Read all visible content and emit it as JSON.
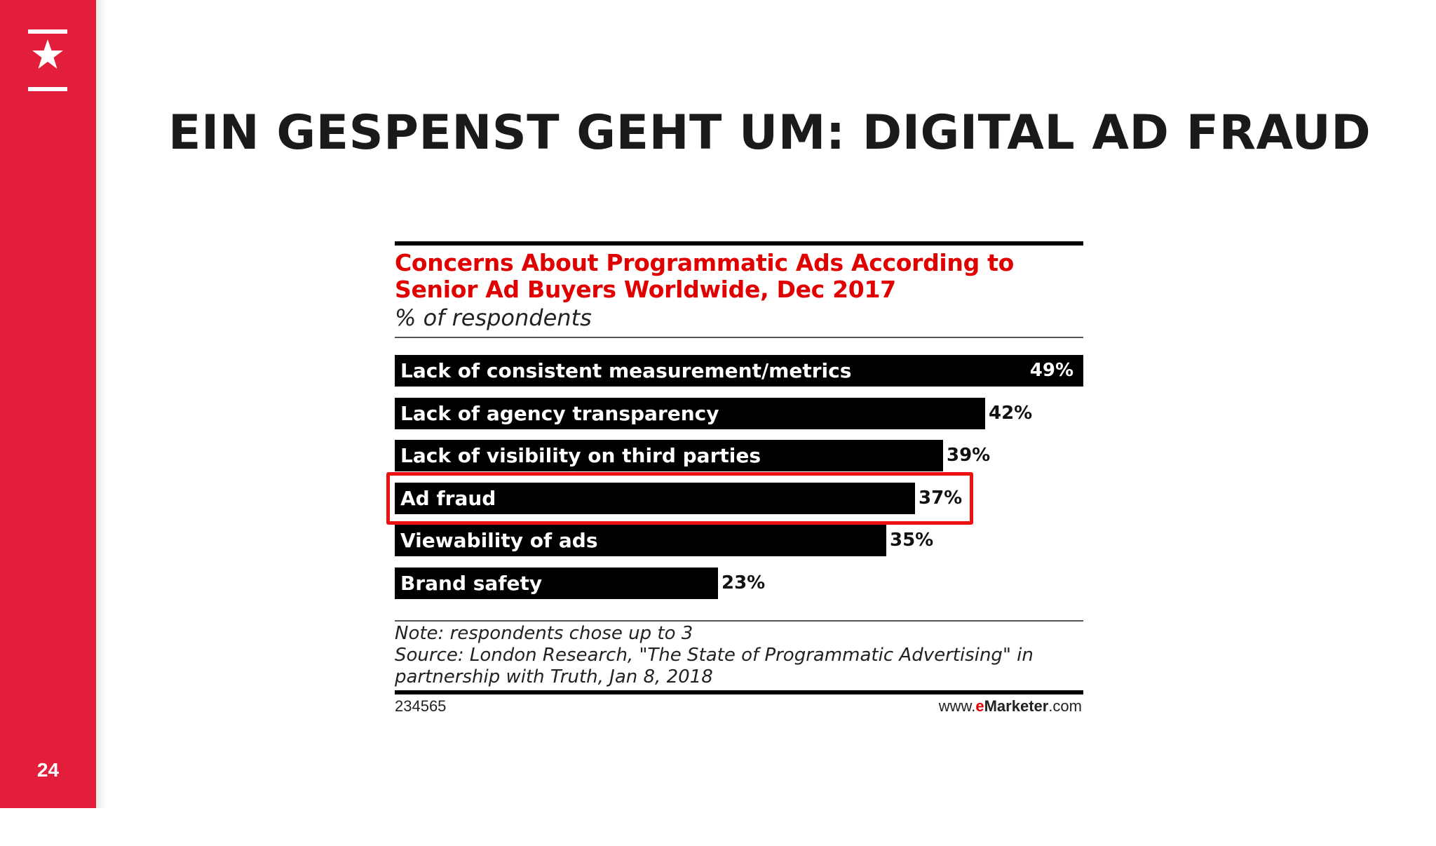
{
  "slide": {
    "title": "EIN GESPENST GEHT UM: DIGITAL AD FRAUD",
    "page_number": "24",
    "colors": {
      "accent": "#e31e3a",
      "highlight": "#ee1111",
      "bar": "#000000"
    },
    "logo_icon": "star-icon"
  },
  "chart_data": {
    "type": "bar",
    "orientation": "horizontal",
    "title": "Concerns About Programmatic Ads According to Senior Ad Buyers Worldwide, Dec 2017",
    "title_lines": [
      "Concerns About Programmatic Ads According to",
      "Senior Ad Buyers Worldwide, Dec 2017"
    ],
    "subtitle": "% of respondents",
    "categories": [
      "Lack of consistent measurement/metrics",
      "Lack of agency transparency",
      "Lack of visibility on third parties",
      "Ad fraud",
      "Viewability of ads",
      "Brand safety"
    ],
    "values": [
      49,
      42,
      39,
      37,
      35,
      23
    ],
    "value_labels": [
      "49%",
      "42%",
      "39%",
      "37%",
      "35%",
      "23%"
    ],
    "xlim": [
      0,
      49
    ],
    "highlighted_category": "Ad fraud",
    "notes": [
      "Note: respondents chose up to 3",
      "Source: London Research, \"The State of Programmatic Advertising\" in",
      "partnership with Truth, Jan 8, 2018"
    ],
    "chart_id": "234565",
    "source_brand": {
      "prefix": "www.",
      "brand_e": "e",
      "brand_rest": "Marketer",
      "suffix": ".com"
    }
  }
}
